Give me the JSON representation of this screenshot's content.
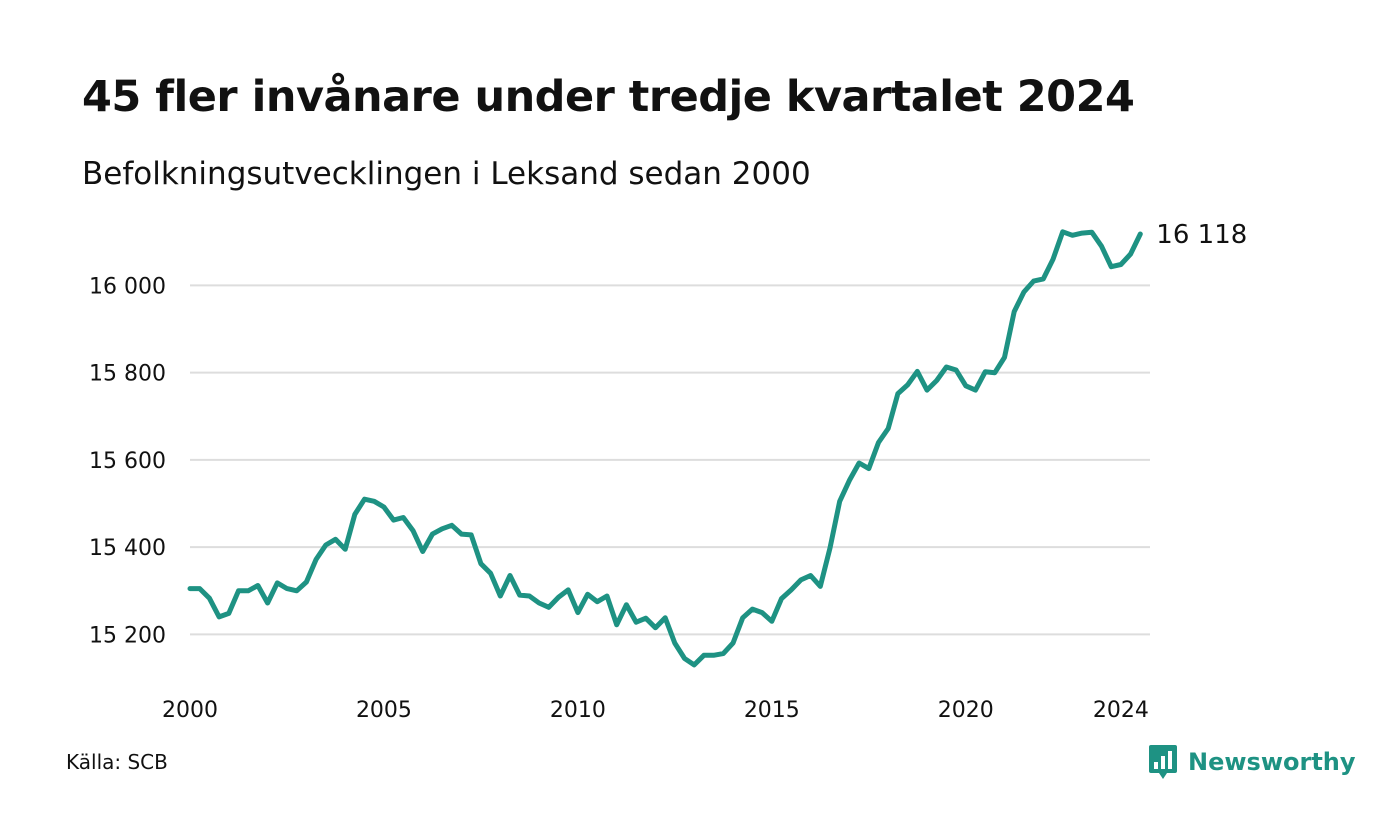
{
  "header": {
    "title": "45 fler invånare under tredje kvartalet 2024",
    "subtitle": "Befolkningsutvecklingen i Leksand sedan 2000"
  },
  "footer": {
    "source": "Källa: SCB",
    "brand": "Newsworthy",
    "brand_icon": "newsworthy-logo-icon"
  },
  "colors": {
    "line": "#1e9283",
    "grid": "#dddddd",
    "text": "#111111"
  },
  "chart_data": {
    "type": "line",
    "title": "45 fler invånare under tredje kvartalet 2024",
    "subtitle": "Befolkningsutvecklingen i Leksand sedan 2000",
    "xlabel": "",
    "ylabel": "",
    "xlim": [
      2000,
      2024.75
    ],
    "ylim": [
      15100,
      16150
    ],
    "x_ticks": [
      2000,
      2005,
      2010,
      2015,
      2020,
      2024
    ],
    "x_tick_labels": [
      "2000",
      "2005",
      "2010",
      "2015",
      "2020",
      "2024"
    ],
    "y_ticks": [
      15200,
      15400,
      15600,
      15800,
      16000
    ],
    "y_tick_labels": [
      "15 200",
      "15 400",
      "15 600",
      "15 800",
      "16 000"
    ],
    "grid": "horizontal",
    "legend": "none",
    "end_label": "16 118",
    "series": [
      {
        "x": [
          2000.0,
          2000.25,
          2000.5,
          2000.75,
          2001.0,
          2001.25,
          2001.5,
          2001.75,
          2002.0,
          2002.25,
          2002.5,
          2002.75,
          2003.0,
          2003.25,
          2003.5,
          2003.75,
          2004.0,
          2004.25,
          2004.5,
          2004.75,
          2005.0,
          2005.25,
          2005.5,
          2005.75,
          2006.0,
          2006.25,
          2006.5,
          2006.75,
          2007.0,
          2007.25,
          2007.5,
          2007.75,
          2008.0,
          2008.25,
          2008.5,
          2008.75,
          2009.0,
          2009.25,
          2009.5,
          2009.75,
          2010.0,
          2010.25,
          2010.5,
          2010.75,
          2011.0,
          2011.25,
          2011.5,
          2011.75,
          2012.0,
          2012.25,
          2012.5,
          2012.75,
          2013.0,
          2013.25,
          2013.5,
          2013.75,
          2014.0,
          2014.25,
          2014.5,
          2014.75,
          2015.0,
          2015.25,
          2015.5,
          2015.75,
          2016.0,
          2016.25,
          2016.5,
          2016.75,
          2017.0,
          2017.25,
          2017.5,
          2017.75,
          2018.0,
          2018.25,
          2018.5,
          2018.75,
          2019.0,
          2019.25,
          2019.5,
          2019.75,
          2020.0,
          2020.25,
          2020.5,
          2020.75,
          2021.0,
          2021.25,
          2021.5,
          2021.75,
          2022.0,
          2022.25,
          2022.5,
          2022.75,
          2023.0,
          2023.25,
          2023.5,
          2023.75,
          2024.0,
          2024.25,
          2024.5
        ],
        "values": [
          15305,
          15305,
          15283,
          15240,
          15248,
          15300,
          15300,
          15312,
          15272,
          15318,
          15305,
          15300,
          15320,
          15372,
          15405,
          15418,
          15395,
          15475,
          15510,
          15505,
          15492,
          15462,
          15468,
          15438,
          15390,
          15430,
          15442,
          15450,
          15430,
          15428,
          15362,
          15340,
          15288,
          15335,
          15290,
          15288,
          15272,
          15262,
          15285,
          15302,
          15250,
          15292,
          15275,
          15288,
          15222,
          15268,
          15228,
          15237,
          15215,
          15238,
          15180,
          15145,
          15130,
          15152,
          15152,
          15156,
          15180,
          15238,
          15258,
          15250,
          15230,
          15282,
          15302,
          15325,
          15335,
          15310,
          15398,
          15505,
          15553,
          15593,
          15580,
          15640,
          15672,
          15752,
          15772,
          15803,
          15760,
          15782,
          15813,
          15806,
          15770,
          15760,
          15802,
          15800,
          15835,
          15940,
          15985,
          16010,
          16015,
          16060,
          16123,
          16115,
          16120,
          16122,
          16090,
          16043,
          16048,
          16072,
          16118
        ]
      }
    ]
  }
}
